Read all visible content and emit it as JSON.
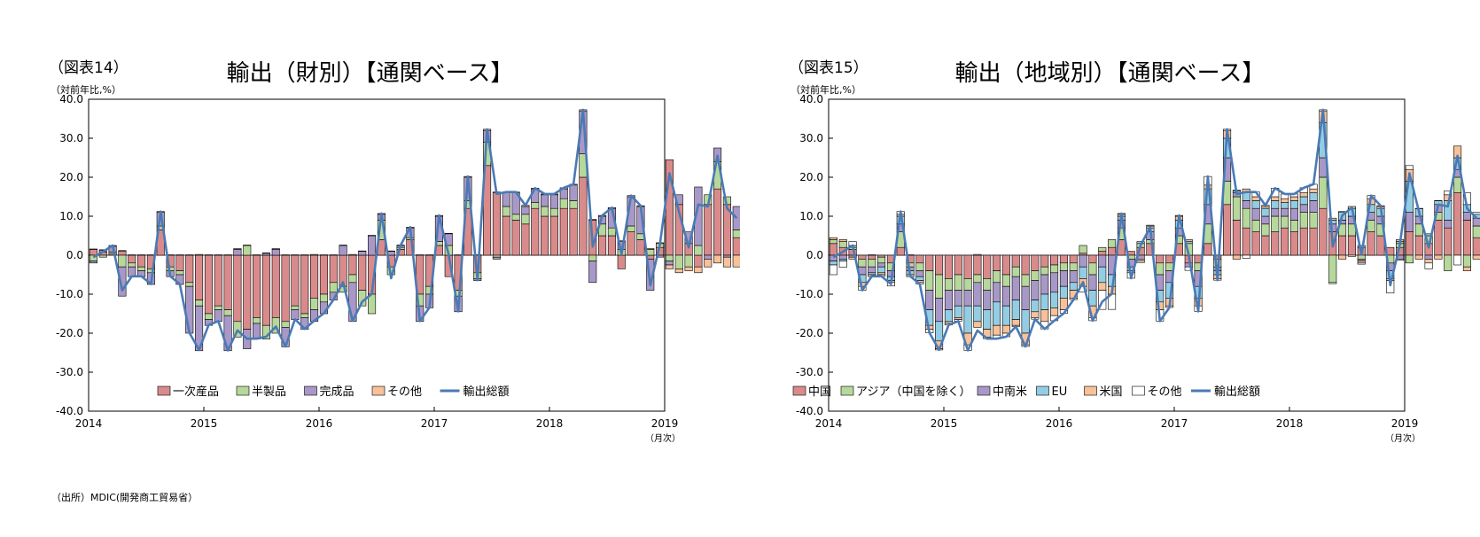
{
  "chart_data": [
    {
      "type": "bar",
      "figure_label": "（図表14）",
      "title": "輸出（財別）【通関ベース】",
      "unit_label": "（対前年比,%）",
      "x_unit": "（月次）",
      "ylim": [
        -40,
        40
      ],
      "y_ticks": [
        "40.0",
        "30.0",
        "20.0",
        "10.0",
        "0.0",
        "-10.0",
        "-20.0",
        "-30.0",
        "-40.0"
      ],
      "x_ticks": [
        "2014",
        "2015",
        "2016",
        "2017",
        "2018",
        "2019"
      ],
      "start_month": "2014-01",
      "legend_position": "bottom",
      "grid": false,
      "colors": {
        "一次産品": "#d98b8b",
        "半製品": "#b7d89b",
        "完成品": "#a898c8",
        "その他": "#f7c19a",
        "輸出総額": "#4a7ab5"
      },
      "series": [
        {
          "name": "一次産品",
          "values": [
            1.5,
            0.8,
            0.3,
            1.0,
            -2.0,
            -3.0,
            -3.5,
            6.5,
            -3.0,
            -4.0,
            -7.0,
            -11.5,
            -15.0,
            -13.0,
            -14.0,
            -17.0,
            -19.0,
            -16.0,
            -18.0,
            -16.0,
            -17.0,
            -13.0,
            -15.0,
            -11.0,
            -10.0,
            -7.0,
            -8.0,
            -5.0,
            -9.0,
            -10.0,
            4.0,
            -3.0,
            1.5,
            4.0,
            -10.0,
            -8.0,
            2.5,
            -5.5,
            -9.0,
            12.0,
            -4.5,
            23.0,
            16.0,
            10.0,
            9.0,
            8.0,
            12.0,
            10.0,
            10.0,
            12.0,
            12.0,
            20.0,
            9.0,
            5.0,
            5.0,
            -3.5,
            6.0,
            4.0,
            -1.0,
            2.0,
            24.5,
            13.0,
            3.0,
            -3.0,
            13.0,
            17.0,
            13.0,
            4.5
          ]
        },
        {
          "name": "半製品",
          "values": [
            -1.5,
            -0.5,
            0.5,
            -3.0,
            -1.0,
            -1.0,
            -1.0,
            1.0,
            -1.0,
            -1.0,
            -1.0,
            -1.5,
            -1.5,
            -1.0,
            -1.5,
            -4.0,
            2.5,
            -1.5,
            -3.5,
            -4.0,
            -1.5,
            -1.0,
            -1.0,
            -3.0,
            -2.0,
            -2.5,
            -1.5,
            -2.0,
            -4.0,
            -5.0,
            5.0,
            -2.0,
            0.5,
            0.5,
            -3.0,
            -2.0,
            1.0,
            2.5,
            -1.5,
            2.0,
            -1.5,
            6.0,
            -0.5,
            2.5,
            1.5,
            2.5,
            1.5,
            2.5,
            2.0,
            2.5,
            2.0,
            6.0,
            -1.5,
            3.0,
            2.0,
            1.5,
            1.5,
            1.5,
            1.5,
            1.0,
            -1.5,
            -3.5,
            -3.0,
            2.5,
            2.5,
            7.0,
            2.0,
            2.0
          ]
        },
        {
          "name": "完成品",
          "values": [
            -0.5,
            0.5,
            1.5,
            -7.5,
            -2.5,
            -1.5,
            -3.0,
            3.5,
            -1.5,
            -2.5,
            -12.0,
            -11.5,
            -1.5,
            -3.0,
            -9.0,
            1.5,
            -5.0,
            -4.0,
            0.5,
            1.5,
            -5.0,
            -2.5,
            -3.0,
            -3.0,
            -3.0,
            -2.0,
            2.5,
            -10.0,
            1.0,
            5.0,
            1.5,
            1.0,
            0.5,
            2.5,
            -4.0,
            -3.5,
            6.5,
            3.0,
            -4.0,
            6.0,
            -0.5,
            3.0,
            -0.5,
            3.5,
            5.5,
            2.0,
            3.5,
            3.0,
            3.5,
            2.5,
            4.0,
            11.0,
            -5.5,
            2.0,
            5.0,
            2.0,
            7.5,
            7.0,
            -8.0,
            -0.5,
            -1.0,
            2.5,
            3.0,
            15.0,
            -1.0,
            3.5,
            -0.5,
            6.0
          ]
        },
        {
          "name": "その他",
          "values": [
            0.1,
            0.1,
            0.2,
            0.2,
            0.1,
            0.1,
            0.1,
            0.2,
            0.1,
            0.1,
            0.1,
            0.2,
            0.1,
            0.1,
            0.1,
            0.2,
            0.1,
            0.1,
            0.1,
            0.2,
            0.1,
            0.1,
            0.1,
            0.2,
            0.1,
            0.1,
            0.1,
            0.2,
            0.1,
            0.1,
            0.2,
            0.1,
            0.1,
            0.2,
            0.1,
            0.1,
            0.2,
            0.1,
            0.1,
            0.2,
            0.1,
            0.3,
            0.2,
            0.2,
            0.2,
            0.3,
            0.2,
            0.2,
            0.2,
            0.3,
            0.2,
            0.3,
            0.2,
            0.2,
            0.2,
            0.2,
            0.3,
            0.2,
            0.2,
            0.2,
            -1.0,
            -1.0,
            -1.0,
            -1.5,
            -2.0,
            -2.0,
            -2.5,
            -3.0
          ]
        },
        {
          "name": "輸出総額",
          "type": "line",
          "values": [
            -0.5,
            0.9,
            2.5,
            -9.0,
            -5.4,
            -5.4,
            -7.4,
            11.2,
            -5.4,
            -7.4,
            -19.9,
            -24.3,
            -17.9,
            -16.9,
            -24.4,
            -19.3,
            -21.4,
            -21.4,
            -20.9,
            -18.3,
            -23.4,
            -16.4,
            -18.9,
            -16.8,
            -14.9,
            -11.4,
            -6.9,
            -16.8,
            -11.9,
            -9.9,
            10.7,
            -5.9,
            2.6,
            7.2,
            -16.9,
            -13.4,
            10.2,
            0.1,
            -14.4,
            20.2,
            -6.4,
            32.3,
            15.7,
            16.2,
            16.2,
            12.8,
            17.2,
            15.7,
            15.7,
            17.3,
            18.2,
            37.3,
            2.2,
            10.2,
            12.2,
            0.2,
            15.3,
            12.7,
            -7.7,
            2.7,
            21.0,
            11.0,
            2.0,
            13.0,
            12.5,
            25.5,
            12.0,
            9.5
          ]
        }
      ]
    },
    {
      "type": "bar",
      "figure_label": "（図表15）",
      "title": "輸出（地域別）【通関ベース】",
      "unit_label": "（対前年比,%）",
      "x_unit": "（月次）",
      "ylim": [
        -40,
        40
      ],
      "y_ticks": [
        "40.0",
        "30.0",
        "20.0",
        "10.0",
        "0.0",
        "-10.0",
        "-20.0",
        "-30.0",
        "-40.0"
      ],
      "x_ticks": [
        "2014",
        "2015",
        "2016",
        "2017",
        "2018",
        "2019"
      ],
      "start_month": "2014-01",
      "legend_position": "bottom",
      "grid": false,
      "colors": {
        "中国": "#d98b8b",
        "アジア（中国を除く）": "#b7d89b",
        "中南米": "#a898c8",
        "EU": "#93cde3",
        "米国": "#f7c19a",
        "その他": "#ffffff",
        "輸出総額": "#4a7ab5"
      },
      "series": [
        {
          "name": "中国",
          "values": [
            3.0,
            2.0,
            1.5,
            -1.0,
            -1.0,
            -0.5,
            -2.0,
            2.0,
            -2.0,
            -2.0,
            -4.0,
            -5.0,
            -6.0,
            -5.0,
            -6.0,
            -5.0,
            -6.0,
            -4.0,
            -5.0,
            -3.0,
            -5.0,
            -4.0,
            -3.0,
            -2.5,
            -2.0,
            -2.0,
            0.5,
            -2.0,
            1.0,
            2.0,
            4.0,
            1.0,
            2.0,
            3.0,
            -2.0,
            -2.0,
            3.0,
            -2.0,
            -2.0,
            3.0,
            -1.0,
            13.0,
            9.0,
            7.0,
            6.0,
            5.0,
            6.0,
            7.0,
            6.0,
            7.0,
            7.0,
            12.0,
            6.0,
            5.0,
            5.0,
            2.0,
            6.0,
            5.0,
            2.0,
            2.0,
            6.0,
            5.0,
            3.0,
            9.0,
            7.0,
            16.0,
            9.0,
            4.5
          ]
        },
        {
          "name": "アジア（中国を除く）",
          "values": [
            1.0,
            1.5,
            0.5,
            -2.0,
            -2.0,
            -1.5,
            -2.0,
            4.0,
            -1.0,
            -2.0,
            -5.0,
            -6.0,
            -3.0,
            -4.0,
            -3.0,
            -2.0,
            -3.0,
            -3.0,
            -3.0,
            -2.5,
            -3.0,
            -2.5,
            -2.0,
            -2.0,
            -2.0,
            -2.0,
            2.0,
            -3.0,
            1.0,
            2.0,
            3.0,
            -1.0,
            1.0,
            1.0,
            -3.0,
            -2.0,
            2.0,
            3.0,
            -2.0,
            5.0,
            -2.0,
            6.0,
            6.0,
            5.0,
            3.0,
            3.0,
            4.0,
            3.0,
            3.0,
            4.0,
            4.0,
            8.0,
            -7.0,
            3.0,
            3.0,
            -1.0,
            3.0,
            3.0,
            -2.0,
            1.0,
            -2.0,
            3.0,
            2.0,
            2.0,
            -4.0,
            4.0,
            -3.0,
            3.0
          ]
        },
        {
          "name": "中南米",
          "values": [
            -1.5,
            -1.0,
            -0.5,
            -2.0,
            -1.5,
            -1.0,
            -1.5,
            2.0,
            -1.0,
            -1.5,
            -5.0,
            -6.0,
            -5.0,
            -4.0,
            -4.0,
            -6.0,
            -5.0,
            -5.0,
            -5.0,
            -6.0,
            -6.0,
            -5.0,
            -5.0,
            -5.0,
            -4.0,
            -3.0,
            -3.0,
            -4.0,
            -3.0,
            -5.0,
            2.0,
            -2.0,
            -1.0,
            2.0,
            -4.0,
            -3.0,
            2.0,
            -1.0,
            -4.0,
            5.0,
            -1.0,
            6.0,
            1.0,
            2.0,
            3.0,
            2.0,
            2.0,
            2.0,
            3.0,
            2.0,
            3.0,
            5.0,
            2.0,
            1.0,
            2.0,
            -0.5,
            2.0,
            2.0,
            -2.0,
            -1.0,
            5.0,
            2.0,
            -1.0,
            2.0,
            2.0,
            2.0,
            2.0,
            2.0
          ]
        },
        {
          "name": "EU",
          "values": [
            -1.0,
            -0.5,
            0.5,
            -2.0,
            -0.5,
            -1.5,
            -1.0,
            2.0,
            -1.0,
            -1.0,
            -4.0,
            -5.0,
            -3.0,
            -3.0,
            -7.0,
            -4.0,
            -5.0,
            -6.0,
            -5.0,
            -5.0,
            -6.0,
            -3.0,
            -4.0,
            -4.0,
            -3.0,
            -2.0,
            -3.0,
            -4.0,
            -4.0,
            -3.0,
            1.0,
            -1.0,
            0.5,
            1.0,
            -3.0,
            -4.0,
            2.0,
            0.5,
            -3.0,
            4.0,
            -1.0,
            5.0,
            0.5,
            2.0,
            2.0,
            2.0,
            2.0,
            1.5,
            2.0,
            2.0,
            2.0,
            9.0,
            1.0,
            2.0,
            2.0,
            0.5,
            2.0,
            2.0,
            -2.0,
            0.5,
            8.0,
            2.0,
            0.5,
            1.0,
            5.0,
            3.0,
            2.0,
            1.0
          ]
        },
        {
          "name": "米国",
          "values": [
            0.5,
            0.5,
            -0.5,
            -1.0,
            -0.5,
            -0.5,
            -0.5,
            0.5,
            -0.5,
            -0.5,
            -1.0,
            -2.0,
            -0.5,
            -0.5,
            -3.0,
            -1.5,
            -2.0,
            -2.5,
            -2.0,
            -1.5,
            -3.0,
            -1.5,
            -3.0,
            -2.0,
            -3.0,
            -2.0,
            -2.0,
            -3.0,
            -2.0,
            -2.0,
            0.5,
            -0.5,
            -0.5,
            0.5,
            -2.0,
            -2.0,
            1.0,
            0.5,
            -2.0,
            1.0,
            -1.0,
            2.0,
            -1.0,
            1.0,
            1.0,
            0.5,
            1.0,
            1.0,
            1.0,
            1.0,
            1.0,
            3.0,
            0.5,
            -1.0,
            0.5,
            -0.5,
            1.5,
            0.5,
            -0.5,
            0.5,
            3.0,
            -1.0,
            -1.0,
            -1.0,
            1.5,
            3.0,
            -1.0,
            -1.0
          ]
        },
        {
          "name": "その他",
          "values": [
            -2.5,
            -1.6,
            1.0,
            -1.0,
            0.1,
            -0.4,
            -0.9,
            0.7,
            0.1,
            -0.4,
            -0.9,
            -0.3,
            -0.4,
            -0.4,
            -1.4,
            0.2,
            -0.4,
            -0.9,
            -0.9,
            -0.3,
            -0.4,
            -0.4,
            -1.9,
            -1.3,
            -0.9,
            -0.4,
            -1.4,
            -0.8,
            -4.9,
            -3.9,
            0.2,
            -1.4,
            -0.4,
            0.2,
            -2.9,
            -0.4,
            0.2,
            -0.9,
            -1.4,
            2.2,
            -0.4,
            0.3,
            0.2,
            -0.8,
            1.2,
            0.3,
            2.2,
            1.2,
            0.7,
            1.3,
            1.2,
            0.3,
            -0.3,
            0.2,
            -0.3,
            -0.3,
            0.8,
            0.2,
            -3.2,
            -0.3,
            1.0,
            0.0,
            -1.5,
            0.0,
            1.0,
            -2.5,
            3.0,
            0.5
          ]
        },
        {
          "name": "輸出総額",
          "type": "line",
          "values": [
            -0.5,
            0.9,
            2.5,
            -9.0,
            -5.4,
            -5.4,
            -7.4,
            11.2,
            -5.4,
            -7.4,
            -19.9,
            -24.3,
            -17.9,
            -16.9,
            -24.4,
            -19.3,
            -21.4,
            -21.4,
            -20.9,
            -18.3,
            -23.4,
            -16.4,
            -18.9,
            -16.8,
            -14.9,
            -11.4,
            -6.9,
            -16.8,
            -11.9,
            -9.9,
            10.7,
            -5.9,
            2.6,
            7.2,
            -16.9,
            -13.4,
            10.2,
            0.1,
            -14.4,
            20.2,
            -6.4,
            32.3,
            15.7,
            16.2,
            16.2,
            12.8,
            17.2,
            15.7,
            15.7,
            17.3,
            18.2,
            37.3,
            2.2,
            10.2,
            12.2,
            0.2,
            15.3,
            12.7,
            -7.7,
            2.7,
            21.0,
            11.0,
            2.0,
            13.0,
            12.5,
            25.5,
            12.0,
            9.5
          ]
        }
      ]
    }
  ],
  "source_note": "（出所）MDIC(開発商工貿易省）"
}
